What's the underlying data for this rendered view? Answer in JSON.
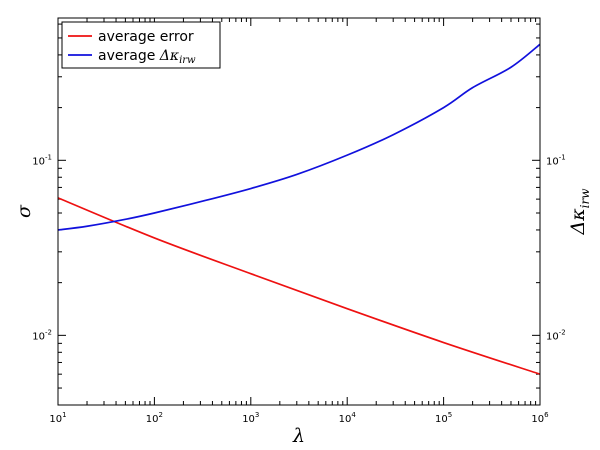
{
  "chart_data": {
    "type": "line",
    "xscale": "log",
    "yscale": "log",
    "xlabel": "λ",
    "ylabel": "σ",
    "y2label": "Δκ",
    "y2label_sub": "irw",
    "xlim": [
      10,
      1000000
    ],
    "ylim": [
      0.004,
      0.65
    ],
    "x_ticks": [
      {
        "value": 10,
        "base": "10",
        "exp": "1"
      },
      {
        "value": 100,
        "base": "10",
        "exp": "2"
      },
      {
        "value": 1000,
        "base": "10",
        "exp": "3"
      },
      {
        "value": 10000,
        "base": "10",
        "exp": "4"
      },
      {
        "value": 100000,
        "base": "10",
        "exp": "5"
      },
      {
        "value": 1000000,
        "base": "10",
        "exp": "6"
      }
    ],
    "y_ticks": [
      {
        "value": 0.01,
        "base": "10",
        "exp": "-2"
      },
      {
        "value": 0.1,
        "base": "10",
        "exp": "-1"
      }
    ],
    "legend_position": "top-left",
    "series": [
      {
        "name": "average error",
        "color": "#ee1111",
        "x": [
          10,
          100,
          1000,
          10000,
          100000,
          1000000
        ],
        "y": [
          0.061,
          0.036,
          0.0225,
          0.0142,
          0.0091,
          0.006
        ]
      },
      {
        "name": "average",
        "name_math": "Δκ",
        "name_sub": "irw",
        "color": "#1111dd",
        "x": [
          10,
          20,
          50,
          100,
          300,
          1000,
          3000,
          10000,
          30000,
          100000,
          200000,
          500000,
          1000000
        ],
        "y": [
          0.04,
          0.042,
          0.046,
          0.05,
          0.058,
          0.069,
          0.083,
          0.107,
          0.14,
          0.2,
          0.26,
          0.34,
          0.46
        ]
      }
    ]
  }
}
